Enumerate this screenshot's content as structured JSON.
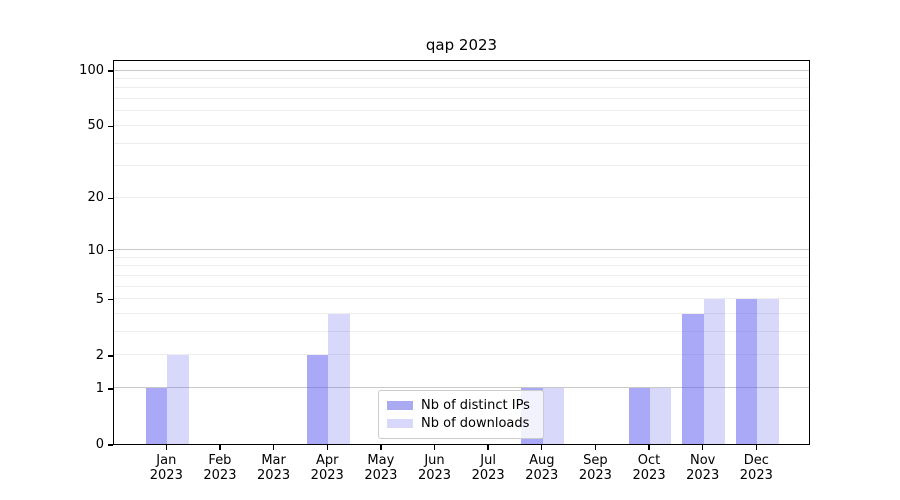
{
  "title": "qap 2023",
  "chart_data": {
    "type": "bar",
    "title": "qap 2023",
    "categories": [
      "Jan",
      "Feb",
      "Mar",
      "Apr",
      "May",
      "Jun",
      "Jul",
      "Aug",
      "Sep",
      "Oct",
      "Nov",
      "Dec"
    ],
    "category_year": "2023",
    "series": [
      {
        "name": "Nb of distinct IPs",
        "values": [
          1,
          0,
          0,
          2,
          0,
          0,
          0,
          1,
          0,
          1,
          4,
          5
        ],
        "color": "rgba(90,90,240,0.52)",
        "swatch_color": "#aaaaf3"
      },
      {
        "name": "Nb of downloads",
        "values": [
          2,
          0,
          0,
          4,
          0,
          0,
          0,
          1,
          0,
          1,
          5,
          5
        ],
        "color": "rgba(90,90,240,0.24)",
        "swatch_color": "#d8d8fa"
      }
    ],
    "xlabel": "",
    "ylabel": "",
    "y_axis": {
      "scale": "log10(1+x)",
      "tick_values": [
        0,
        1,
        2,
        5,
        10,
        20,
        50,
        100
      ],
      "tick_labels": [
        "0",
        "1",
        "2",
        "5",
        "10",
        "20",
        "50",
        "100"
      ],
      "min": 0,
      "max": 100
    },
    "grid": {
      "enabled": true,
      "major_values": [
        1,
        10,
        100
      ],
      "minor_values": [
        2,
        3,
        4,
        5,
        6,
        7,
        8,
        9,
        20,
        30,
        40,
        50,
        60,
        70,
        80,
        90
      ],
      "major_color": "#c9c9c9",
      "minor_color": "#ededed"
    },
    "legend": {
      "entries": [
        "Nb of distinct IPs",
        "Nb of downloads"
      ],
      "position": "bottom-center-inside"
    },
    "bar_color_dark": "rgba(90,90,240,0.52)",
    "bar_color_light": "rgba(90,90,240,0.24)",
    "text_color": "#000000",
    "background_color": "#ffffff"
  }
}
